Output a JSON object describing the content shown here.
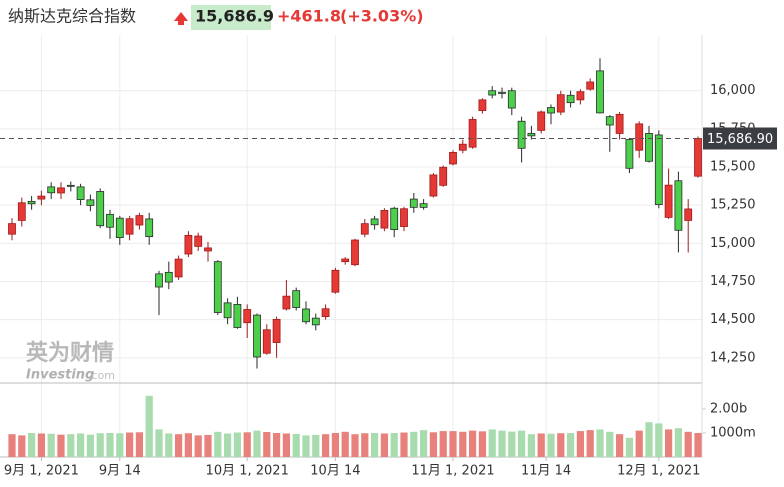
{
  "chart_data": {
    "type": "candlestick",
    "header": {
      "title": "纳斯达克综合指数",
      "price": "15,686.9",
      "change": "+461.8",
      "change_percent": "(+3.03%)"
    },
    "watermark": [
      "英为财情",
      "Investing",
      ".com"
    ],
    "categories": [
      "2021-08-27",
      "2021-08-30",
      "2021-08-31",
      "2021-09-01",
      "2021-09-02",
      "2021-09-03",
      "2021-09-07",
      "2021-09-08",
      "2021-09-09",
      "2021-09-10",
      "2021-09-13",
      "2021-09-14",
      "2021-09-15",
      "2021-09-16",
      "2021-09-17",
      "2021-09-20",
      "2021-09-21",
      "2021-09-22",
      "2021-09-23",
      "2021-09-24",
      "2021-09-27",
      "2021-09-28",
      "2021-09-29",
      "2021-09-30",
      "2021-10-01",
      "2021-10-04",
      "2021-10-05",
      "2021-10-06",
      "2021-10-07",
      "2021-10-08",
      "2021-10-11",
      "2021-10-12",
      "2021-10-13",
      "2021-10-14",
      "2021-10-15",
      "2021-10-18",
      "2021-10-19",
      "2021-10-20",
      "2021-10-21",
      "2021-10-22",
      "2021-10-25",
      "2021-10-26",
      "2021-10-27",
      "2021-10-28",
      "2021-10-29",
      "2021-11-01",
      "2021-11-02",
      "2021-11-03",
      "2021-11-04",
      "2021-11-05",
      "2021-11-08",
      "2021-11-09",
      "2021-11-10",
      "2021-11-11",
      "2021-11-12",
      "2021-11-15",
      "2021-11-16",
      "2021-11-17",
      "2021-11-18",
      "2021-11-19",
      "2021-11-22",
      "2021-11-23",
      "2021-11-24",
      "2021-11-26",
      "2021-11-29",
      "2021-11-30",
      "2021-12-01",
      "2021-12-02",
      "2021-12-03",
      "2021-12-06",
      "2021-12-07"
    ],
    "open": [
      15060,
      15150,
      15275,
      15290,
      15370,
      15330,
      15380,
      15370,
      15285,
      15340,
      15190,
      15165,
      15060,
      15120,
      15160,
      14800,
      14810,
      14780,
      14930,
      14980,
      14950,
      14880,
      14610,
      14600,
      14480,
      14530,
      14280,
      14350,
      14570,
      14690,
      14570,
      14510,
      14520,
      14680,
      14880,
      14860,
      15060,
      15160,
      15100,
      15230,
      15110,
      15290,
      15260,
      15310,
      15380,
      15520,
      15610,
      15630,
      15870,
      16000,
      15990,
      16000,
      15800,
      15720,
      15740,
      15890,
      15860,
      15970,
      15940,
      16010,
      16130,
      15830,
      15720,
      15680,
      15610,
      15720,
      15710,
      15170,
      15410,
      15150,
      15440
    ],
    "high": [
      15165,
      15300,
      15310,
      15345,
      15400,
      15400,
      15405,
      15390,
      15320,
      15360,
      15220,
      15180,
      15180,
      15200,
      15200,
      14820,
      14880,
      14920,
      15080,
      15070,
      15010,
      14890,
      14640,
      14650,
      14600,
      14540,
      14470,
      14520,
      14760,
      14710,
      14620,
      14540,
      14600,
      14840,
      14910,
      15030,
      15160,
      15180,
      15230,
      15240,
      15240,
      15330,
      15290,
      15460,
      15510,
      15610,
      15680,
      15830,
      15950,
      16030,
      16020,
      16020,
      15830,
      15770,
      15870,
      15910,
      16000,
      16000,
      16010,
      16080,
      16212,
      15840,
      15860,
      15690,
      15800,
      15770,
      15740,
      15490,
      15470,
      15290,
      15700
    ],
    "low": [
      15020,
      15110,
      15220,
      15250,
      15290,
      15290,
      15340,
      15250,
      15210,
      15100,
      15030,
      14990,
      15020,
      15090,
      14990,
      14530,
      14700,
      14760,
      14910,
      14950,
      14880,
      14530,
      14470,
      14440,
      14380,
      14180,
      14270,
      14250,
      14560,
      14560,
      14470,
      14430,
      14500,
      14670,
      14860,
      14850,
      15040,
      15090,
      15080,
      15040,
      15080,
      15200,
      15220,
      15300,
      15370,
      15510,
      15590,
      15620,
      15850,
      15950,
      15950,
      15840,
      15530,
      15680,
      15720,
      15780,
      15840,
      15890,
      15910,
      16000,
      15850,
      15600,
      15680,
      15460,
      15560,
      15530,
      15230,
      15160,
      14940,
      14940,
      15430
    ],
    "close": [
      15129.5,
      15265.89,
      15259.24,
      15309.38,
      15331.18,
      15363.52,
      15374.33,
      15286.64,
      15248.25,
      15115.49,
      15105.58,
      15037.76,
      15161.53,
      15181.92,
      15043.97,
      14713.9,
      14746.4,
      14896.85,
      15052.24,
      15047.7,
      14969.97,
      14546.68,
      14512.44,
      14448.58,
      14566.7,
      14255.48,
      14433.83,
      14501.91,
      14654.02,
      14579.54,
      14486.2,
      14465.92,
      14571.64,
      14823.43,
      14897.34,
      15021.81,
      15129.09,
      15121.68,
      15215.7,
      15090.2,
      15226.71,
      15235.84,
      15235.72,
      15448.12,
      15498.39,
      15595.92,
      15649.6,
      15811.58,
      15940.31,
      15971.59,
      15982.36,
      15886.54,
      15622.71,
      15704.28,
      15860.96,
      15853.85,
      15973.86,
      15921.57,
      15993.71,
      16057.44,
      15854.76,
      15775.14,
      15845.23,
      15491.66,
      15782.83,
      15537.69,
      15254.05,
      15381.32,
      15085.47,
      15225.15,
      15686.92
    ],
    "volume": [
      0.95,
      0.9,
      1.0,
      0.98,
      0.97,
      0.93,
      0.95,
      0.98,
      0.93,
      0.99,
      1.0,
      0.99,
      1.02,
      1.03,
      2.55,
      1.15,
      0.98,
      0.95,
      0.99,
      0.9,
      0.92,
      1.05,
      0.98,
      1.02,
      1.03,
      1.1,
      1.04,
      1.0,
      0.98,
      0.96,
      0.9,
      0.92,
      0.95,
      1.0,
      1.05,
      0.95,
      0.99,
      1.0,
      0.98,
      1.0,
      1.02,
      1.05,
      1.12,
      1.03,
      1.08,
      1.08,
      1.05,
      1.1,
      1.07,
      1.15,
      1.1,
      1.06,
      1.1,
      0.95,
      0.98,
      0.97,
      0.99,
      1.0,
      1.08,
      1.12,
      1.15,
      1.05,
      0.95,
      0.8,
      1.1,
      1.45,
      1.4,
      1.15,
      1.2,
      1.05,
      1.0
    ],
    "up_color": "#e53935",
    "down_color": "#4cd04c",
    "volume_up_color": "#e8807c",
    "volume_down_color": "#a8dcae",
    "ylim": [
      14085,
      16365
    ],
    "yticks": [
      {
        "value": 14250,
        "label": "14,250"
      },
      {
        "value": 14500,
        "label": "14,500"
      },
      {
        "value": 14750,
        "label": "14,750"
      },
      {
        "value": 15000,
        "label": "15,000"
      },
      {
        "value": 15250,
        "label": "15,250"
      },
      {
        "value": 15500,
        "label": "15,500"
      },
      {
        "value": 15750,
        "label": "15,750"
      },
      {
        "value": 16000,
        "label": "16,000"
      }
    ],
    "volume_ylim": [
      0,
      3
    ],
    "volume_yticks": [
      {
        "value": 2,
        "label": "2.00b"
      },
      {
        "value": 1,
        "label": "1000m"
      }
    ],
    "xticks": [
      {
        "value": "2021-09-01",
        "label": "9月 1, 2021"
      },
      {
        "value": "2021-09-14",
        "label": "9月 14"
      },
      {
        "value": "2021-10-01",
        "label": "10月 1, 2021"
      },
      {
        "value": "2021-10-14",
        "label": "10月 14"
      },
      {
        "value": "2021-11-01",
        "label": "11月 1, 2021"
      },
      {
        "value": "2021-11-14",
        "label": "11月 14"
      },
      {
        "value": "2021-12-01",
        "label": "12月 1, 2021"
      }
    ],
    "last_price": {
      "value": 15686.9,
      "label": "15,686.90"
    },
    "grid": true
  }
}
